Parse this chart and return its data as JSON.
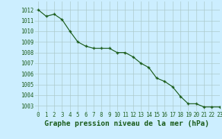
{
  "x": [
    0,
    1,
    2,
    3,
    4,
    5,
    6,
    7,
    8,
    9,
    10,
    11,
    12,
    13,
    14,
    15,
    16,
    17,
    18,
    19,
    20,
    21,
    22,
    23
  ],
  "y": [
    1012.0,
    1011.4,
    1011.6,
    1011.1,
    1010.0,
    1009.0,
    1008.6,
    1008.4,
    1008.4,
    1008.4,
    1008.0,
    1008.0,
    1007.6,
    1007.0,
    1006.6,
    1005.6,
    1005.3,
    1004.8,
    1003.9,
    1003.2,
    1003.2,
    1002.9,
    1002.9,
    1002.9
  ],
  "line_color": "#1a5c1a",
  "marker": "+",
  "marker_size": 3.5,
  "marker_linewidth": 1.0,
  "bg_color": "#cceeff",
  "grid_color": "#aac8c8",
  "ylabel_ticks": [
    1003,
    1004,
    1005,
    1006,
    1007,
    1008,
    1009,
    1010,
    1011,
    1012
  ],
  "xlabel": "Graphe pression niveau de la mer (hPa)",
  "ylim_min": 1002.5,
  "ylim_max": 1012.8,
  "xlim_min": -0.5,
  "xlim_max": 23,
  "xlabel_fontsize": 7.5,
  "tick_fontsize": 5.5,
  "xlabel_color": "#1a5c1a",
  "tick_color": "#1a5c1a",
  "line_width": 0.9
}
